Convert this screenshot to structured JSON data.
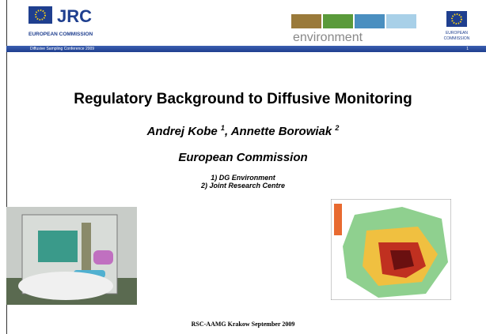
{
  "header": {
    "logo_left": {
      "text": "JRC",
      "subtext": "EUROPEAN COMMISSION"
    },
    "logo_center": "environment",
    "logo_right": [
      "EUROPEAN",
      "COMMISSION"
    ],
    "banner": "Diffusive Sampling Conference 2009",
    "page_number": "1"
  },
  "slide": {
    "title": "Regulatory Background to Diffusive Monitoring",
    "authors": [
      {
        "name": "Andrej Kobe ",
        "sup": "1"
      },
      {
        "name": ", Annette Borowiak ",
        "sup": "2"
      }
    ],
    "organization": "European Commission",
    "affiliations": [
      "1) DG Environment",
      "2) Joint Research Centre"
    ]
  },
  "footer": "RSC-AAMG Krakow September 2009"
}
